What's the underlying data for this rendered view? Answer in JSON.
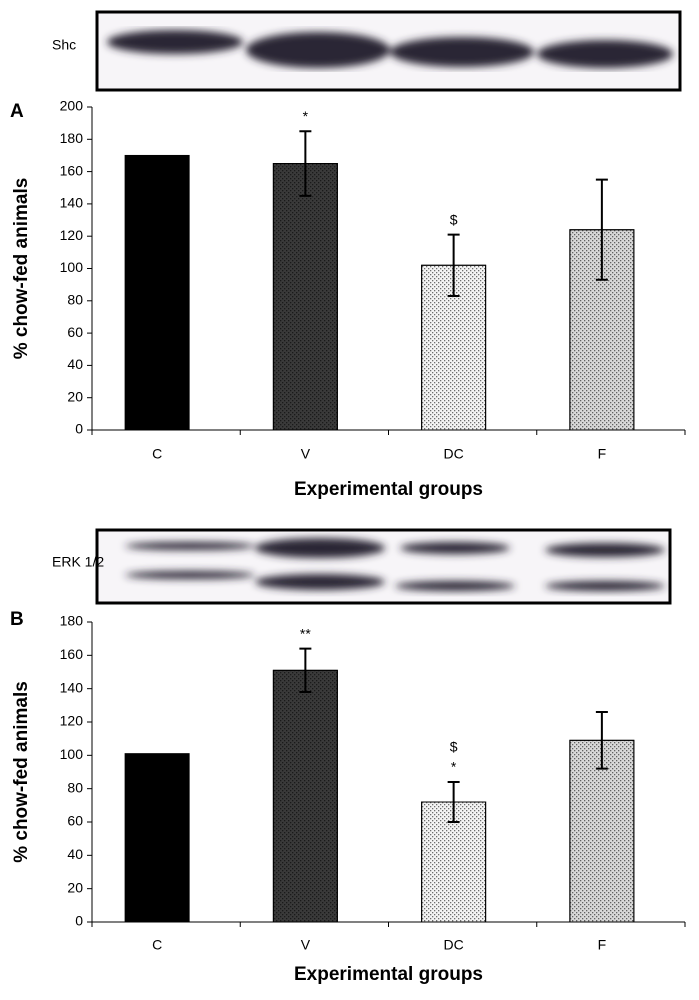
{
  "chart_data": [
    {
      "type": "bar",
      "panel": "A",
      "blot_label": "Shc",
      "ylabel": "% chow-fed animals",
      "xlabel": "Experimental groups",
      "categories": [
        "C",
        "V",
        "DC",
        "F"
      ],
      "values": [
        170,
        165,
        102,
        124
      ],
      "errors": [
        null,
        20,
        19,
        31
      ],
      "annotations": [
        null,
        [
          "*"
        ],
        [
          "$"
        ],
        null
      ],
      "colors": [
        "#000000",
        "#3a3a3a",
        "#f4f4f4",
        "#d8d8d8"
      ],
      "ylim": [
        0,
        200
      ],
      "yticks": [
        0,
        20,
        40,
        60,
        80,
        100,
        120,
        140,
        160,
        180,
        200
      ]
    },
    {
      "type": "bar",
      "panel": "B",
      "blot_label": "ERK 1/2",
      "ylabel": "% chow-fed animals",
      "xlabel": "Experimental groups",
      "categories": [
        "C",
        "V",
        "DC",
        "F"
      ],
      "values": [
        101,
        151,
        72,
        109
      ],
      "errors": [
        null,
        13,
        12,
        17
      ],
      "annotations": [
        null,
        [
          "**"
        ],
        [
          "$",
          "*"
        ],
        null
      ],
      "colors": [
        "#000000",
        "#3a3a3a",
        "#f4f4f4",
        "#d8d8d8"
      ],
      "ylim": [
        0,
        180
      ],
      "yticks": [
        0,
        20,
        40,
        60,
        80,
        100,
        120,
        140,
        160,
        180
      ]
    }
  ]
}
